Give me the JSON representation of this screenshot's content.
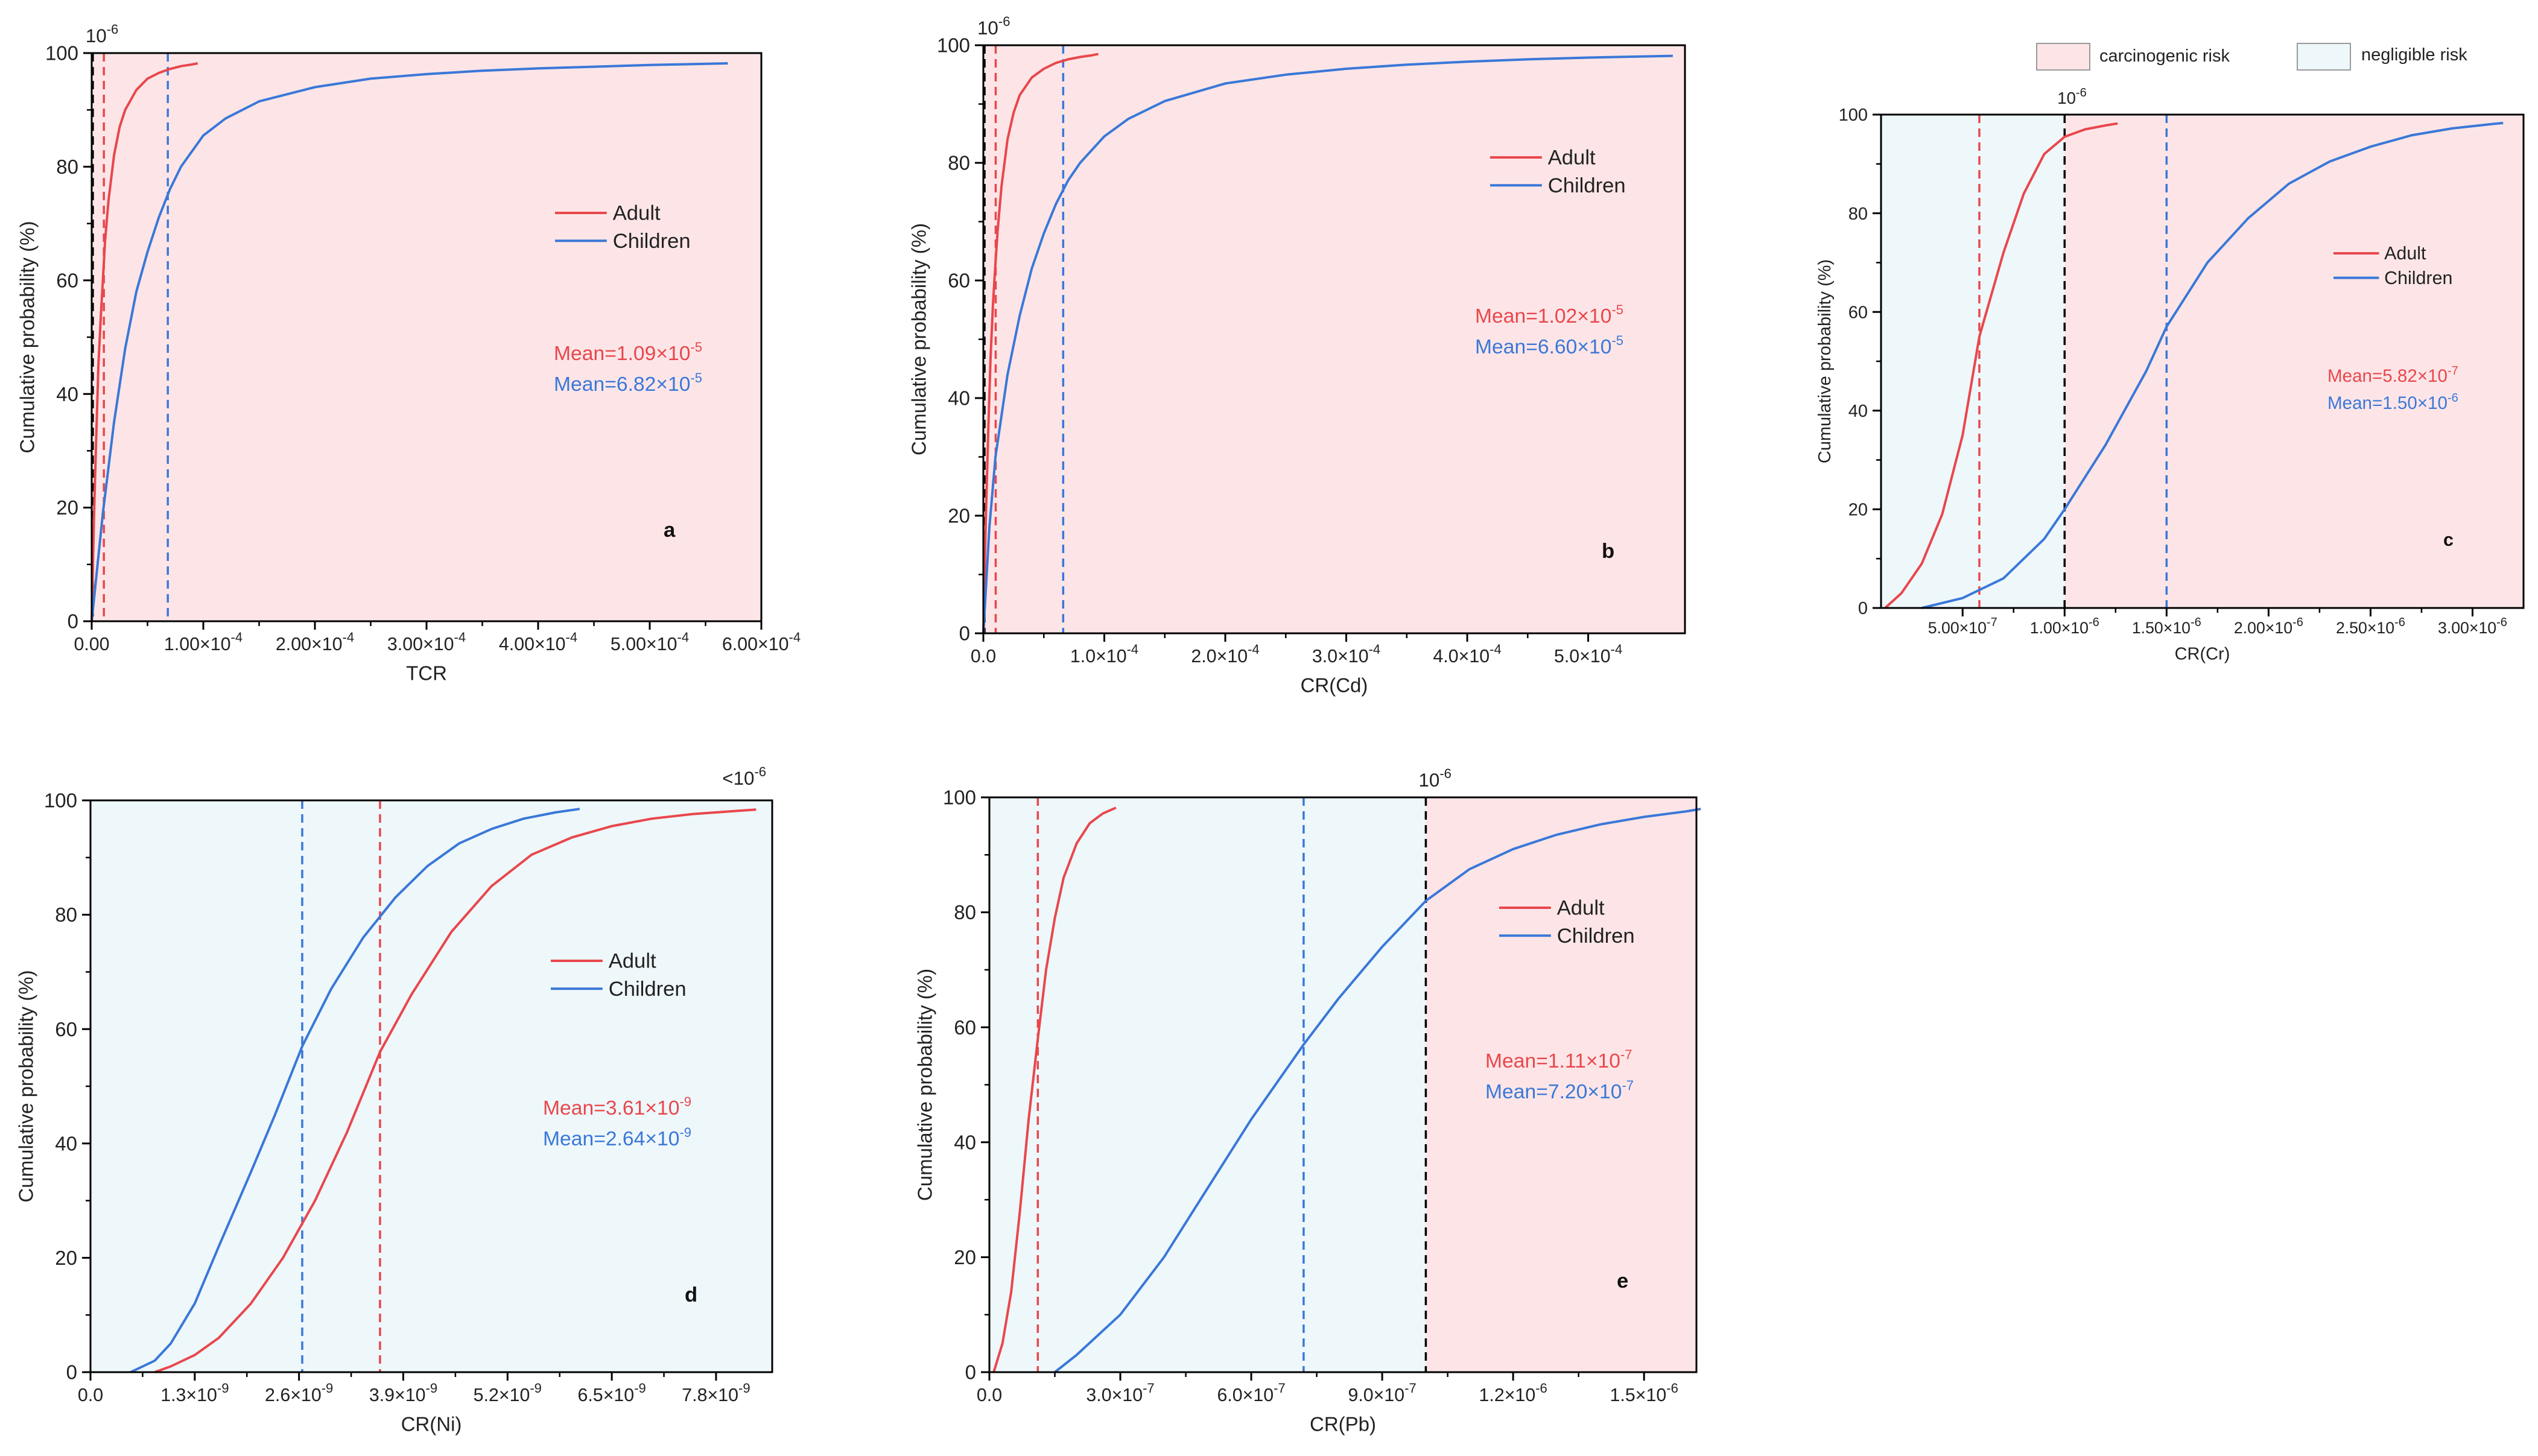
{
  "shared_legend": {
    "items": [
      {
        "label": "carcinogenic risk",
        "color": "#fde5e7"
      },
      {
        "label": "negligible risk",
        "color": "#eef7fa"
      }
    ]
  },
  "colors": {
    "adult": "#e8474c",
    "children": "#3a78d8",
    "carcinogenic_fill": "#fde5e7",
    "negligible_fill": "#eef7fa",
    "threshold_line": "#000000"
  },
  "chart_data": [
    {
      "panel": "a",
      "type": "line",
      "xlabel": "TCR",
      "ylabel": "Cumulative probability (%)",
      "threshold_label": "10-6",
      "xlim": [
        0,
        0.0006
      ],
      "ylim": [
        0,
        100
      ],
      "xticks": [
        0,
        0.0001,
        0.0002,
        0.0003,
        0.0004,
        0.0005,
        0.0006
      ],
      "xtick_labels": [
        "0.00",
        "1.00×10-4",
        "2.00×10-4",
        "3.00×10-4",
        "4.00×10-4",
        "5.00×10-4",
        "6.00×10-4"
      ],
      "yticks": [
        0,
        20,
        40,
        60,
        80,
        100
      ],
      "threshold": 1e-06,
      "legend": [
        "Adult",
        "Children"
      ],
      "annotations": [
        {
          "text": "Mean=1.09×10-5",
          "series": "Adult"
        },
        {
          "text": "Mean=6.82×10-5",
          "series": "Children"
        }
      ],
      "series": [
        {
          "name": "Adult",
          "mean": 1.09e-05,
          "x": [
            0,
            2e-06,
            4e-06,
            6e-06,
            8e-06,
            1e-05,
            1.2e-05,
            1.5e-05,
            2e-05,
            2.5e-05,
            3e-05,
            4e-05,
            5e-05,
            6e-05,
            7e-05,
            8e-05,
            9e-05,
            9.5e-05
          ],
          "y": [
            0,
            18,
            32,
            45,
            53,
            60,
            67,
            74,
            82,
            87,
            90,
            93.5,
            95.5,
            96.5,
            97.2,
            97.7,
            98,
            98.2
          ]
        },
        {
          "name": "Children",
          "mean": 6.82e-05,
          "x": [
            0,
            1e-05,
            2e-05,
            3e-05,
            4e-05,
            5e-05,
            6e-05,
            7e-05,
            8e-05,
            0.0001,
            0.00012,
            0.00015,
            0.0002,
            0.00025,
            0.0003,
            0.00035,
            0.0004,
            0.00045,
            0.0005,
            0.00057
          ],
          "y": [
            0,
            19,
            35,
            48,
            58,
            65,
            71,
            76,
            80,
            85.5,
            88.5,
            91.5,
            94,
            95.5,
            96.3,
            96.9,
            97.3,
            97.6,
            97.9,
            98.2
          ]
        }
      ]
    },
    {
      "panel": "b",
      "type": "line",
      "xlabel": "CR(Cd)",
      "ylabel": "Cumulative probability (%)",
      "threshold_label": "10-6",
      "xlim": [
        0,
        0.00058
      ],
      "ylim": [
        0,
        100
      ],
      "xticks": [
        0,
        0.0001,
        0.0002,
        0.0003,
        0.0004,
        0.0005
      ],
      "xtick_labels": [
        "0.0",
        "1.0×10-4",
        "2.0×10-4",
        "3.0×10-4",
        "4.0×10-4",
        "5.0×10-4"
      ],
      "yticks": [
        0,
        20,
        40,
        60,
        80,
        100
      ],
      "threshold": 1e-06,
      "legend": [
        "Adult",
        "Children"
      ],
      "annotations": [
        {
          "text": "Mean=1.02×10-5",
          "series": "Adult"
        },
        {
          "text": "Mean=6.60×10-5",
          "series": "Children"
        }
      ],
      "series": [
        {
          "name": "Adult",
          "mean": 1.02e-05,
          "x": [
            0,
            2e-06,
            4e-06,
            6e-06,
            8e-06,
            1e-05,
            1.2e-05,
            1.5e-05,
            2e-05,
            2.5e-05,
            3e-05,
            4e-05,
            5e-05,
            6e-05,
            7e-05,
            8e-05,
            9e-05,
            9.5e-05
          ],
          "y": [
            0,
            19,
            34,
            47,
            56,
            63,
            69,
            76,
            84,
            88.5,
            91.5,
            94.5,
            96,
            97,
            97.6,
            98,
            98.3,
            98.5
          ]
        },
        {
          "name": "Children",
          "mean": 6.6e-05,
          "x": [
            0,
            5e-06,
            1e-05,
            2e-05,
            3e-05,
            4e-05,
            5e-05,
            6e-05,
            7e-05,
            8e-05,
            0.0001,
            0.00012,
            0.00015,
            0.0002,
            0.00025,
            0.0003,
            0.00035,
            0.0004,
            0.00045,
            0.0005,
            0.00057
          ],
          "y": [
            0,
            18,
            30,
            44,
            54,
            62,
            68,
            73,
            77,
            80,
            84.5,
            87.5,
            90.5,
            93.5,
            95,
            96,
            96.7,
            97.2,
            97.6,
            97.9,
            98.2
          ]
        }
      ]
    },
    {
      "panel": "c",
      "type": "line",
      "xlabel": "CR(Cr)",
      "ylabel": "Cumulative probability (%)",
      "threshold_label": "10-6",
      "xlim": [
        1e-07,
        3.25e-06
      ],
      "ylim": [
        0,
        100
      ],
      "xticks": [
        5e-07,
        1e-06,
        1.5e-06,
        2e-06,
        2.5e-06,
        3e-06
      ],
      "xtick_labels": [
        "5.00×10-7",
        "1.00×10-6",
        "1.50×10-6",
        "2.00×10-6",
        "2.50×10-6",
        "3.00×10-6"
      ],
      "yticks": [
        0,
        20,
        40,
        60,
        80,
        100
      ],
      "threshold": 1e-06,
      "legend": [
        "Adult",
        "Children"
      ],
      "annotations": [
        {
          "text": "Mean=5.82×10-7",
          "series": "Adult"
        },
        {
          "text": "Mean=1.50×10-6",
          "series": "Children"
        }
      ],
      "series": [
        {
          "name": "Adult",
          "mean": 5.82e-07,
          "x": [
            1.2e-07,
            2e-07,
            3e-07,
            4e-07,
            5e-07,
            5.82e-07,
            7e-07,
            8e-07,
            9e-07,
            1e-06,
            1.1e-06,
            1.2e-06,
            1.26e-06
          ],
          "y": [
            0,
            3,
            9,
            19,
            35,
            55,
            72,
            84,
            92,
            95.5,
            97,
            97.8,
            98.2
          ]
        },
        {
          "name": "Children",
          "mean": 1.5e-06,
          "x": [
            3e-07,
            5e-07,
            7e-07,
            9e-07,
            1e-06,
            1.2e-06,
            1.4e-06,
            1.5e-06,
            1.7e-06,
            1.9e-06,
            2.1e-06,
            2.3e-06,
            2.5e-06,
            2.7e-06,
            2.9e-06,
            3.1e-06,
            3.15e-06
          ],
          "y": [
            0,
            2,
            6,
            14,
            20,
            33,
            48,
            57,
            70,
            79,
            86,
            90.5,
            93.5,
            95.8,
            97.2,
            98.1,
            98.3
          ]
        }
      ]
    },
    {
      "panel": "d",
      "type": "line",
      "xlabel": "CR(Ni)",
      "ylabel": "Cumulative probability (%)",
      "threshold_label": "<10-6",
      "xlim": [
        0,
        8.5e-09
      ],
      "ylim": [
        0,
        100
      ],
      "xticks": [
        0,
        1.3e-09,
        2.6e-09,
        3.9e-09,
        5.2e-09,
        6.5e-09,
        7.8e-09
      ],
      "xtick_labels": [
        "0.0",
        "1.3×10-9",
        "2.6×10-9",
        "3.9×10-9",
        "5.2×10-9",
        "6.5×10-9",
        "7.8×10-9"
      ],
      "yticks": [
        0,
        20,
        40,
        60,
        80,
        100
      ],
      "threshold": null,
      "legend": [
        "Adult",
        "Children"
      ],
      "annotations": [
        {
          "text": "Mean=3.61×10-9",
          "series": "Adult"
        },
        {
          "text": "Mean=2.64×10-9",
          "series": "Children"
        }
      ],
      "series": [
        {
          "name": "Adult",
          "mean": 3.61e-09,
          "x": [
            8e-10,
            1e-09,
            1.3e-09,
            1.6e-09,
            2e-09,
            2.4e-09,
            2.8e-09,
            3.2e-09,
            3.61e-09,
            4e-09,
            4.5e-09,
            5e-09,
            5.5e-09,
            6e-09,
            6.5e-09,
            7e-09,
            7.5e-09,
            8e-09,
            8.3e-09
          ],
          "y": [
            0,
            1,
            3,
            6,
            12,
            20,
            30,
            42,
            56,
            66,
            77,
            85,
            90.5,
            93.5,
            95.5,
            96.8,
            97.6,
            98.1,
            98.4
          ]
        },
        {
          "name": "Children",
          "mean": 2.64e-09,
          "x": [
            5e-10,
            8e-10,
            1e-09,
            1.3e-09,
            1.6e-09,
            2e-09,
            2.3e-09,
            2.64e-09,
            3e-09,
            3.4e-09,
            3.8e-09,
            4.2e-09,
            4.6e-09,
            5e-09,
            5.4e-09,
            5.8e-09,
            6.1e-09
          ],
          "y": [
            0,
            2,
            5,
            12,
            22,
            35,
            45,
            57,
            67,
            76,
            83,
            88.5,
            92.5,
            95,
            96.8,
            97.9,
            98.5
          ]
        }
      ]
    },
    {
      "panel": "e",
      "type": "line",
      "xlabel": "CR(Pb)",
      "ylabel": "Cumulative probability (%)",
      "threshold_label": "10-6",
      "xlim": [
        0,
        1.62e-06
      ],
      "ylim": [
        0,
        100
      ],
      "xticks": [
        0,
        3e-07,
        6e-07,
        9e-07,
        1.2e-06,
        1.5e-06
      ],
      "xtick_labels": [
        "0.0",
        "3.0×10-7",
        "6.0×10-7",
        "9.0×10-7",
        "1.2×10-6",
        "1.5×10-6"
      ],
      "yticks": [
        0,
        20,
        40,
        60,
        80,
        100
      ],
      "threshold": 1e-06,
      "legend": [
        "Adult",
        "Children"
      ],
      "annotations": [
        {
          "text": "Mean=1.11×10-7",
          "series": "Adult"
        },
        {
          "text": "Mean=7.20×10-7",
          "series": "Children"
        }
      ],
      "series": [
        {
          "name": "Adult",
          "mean": 1.11e-07,
          "x": [
            1e-08,
            3e-08,
            5e-08,
            7e-08,
            9e-08,
            1.11e-07,
            1.3e-07,
            1.5e-07,
            1.7e-07,
            2e-07,
            2.3e-07,
            2.6e-07,
            2.9e-07
          ],
          "y": [
            0,
            5,
            14,
            28,
            44,
            58,
            70,
            79,
            86,
            92,
            95.5,
            97.2,
            98.2
          ]
        },
        {
          "name": "Children",
          "mean": 7.2e-07,
          "x": [
            1.5e-07,
            2e-07,
            3e-07,
            4e-07,
            5e-07,
            6e-07,
            7.2e-07,
            8e-07,
            9e-07,
            1e-06,
            1.1e-06,
            1.2e-06,
            1.3e-06,
            1.4e-06,
            1.5e-06,
            1.6e-06,
            1.63e-06
          ],
          "y": [
            0,
            3,
            10,
            20,
            32,
            44,
            57,
            65,
            74,
            82,
            87.5,
            91,
            93.5,
            95.3,
            96.6,
            97.6,
            98
          ]
        }
      ]
    }
  ]
}
